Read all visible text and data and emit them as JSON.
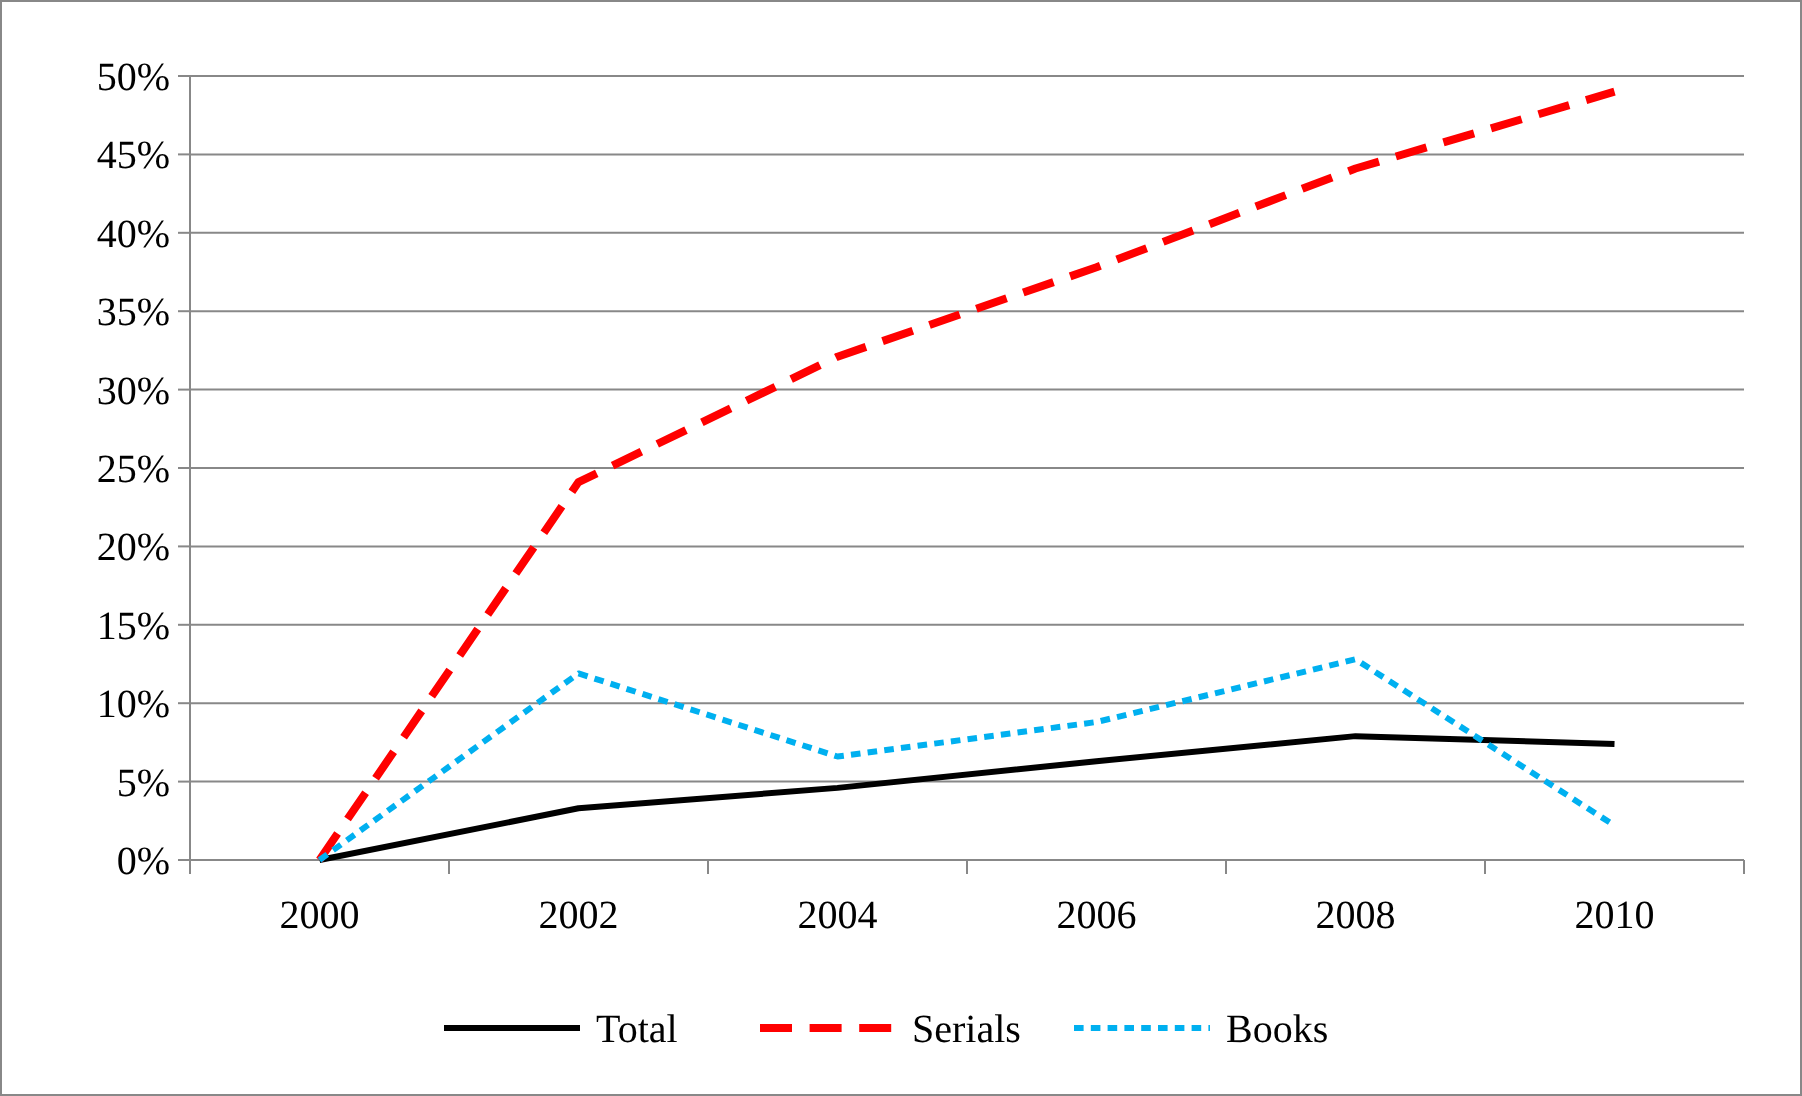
{
  "chart_data": {
    "type": "line",
    "categories": [
      "2000",
      "2002",
      "2004",
      "2006",
      "2008",
      "2010"
    ],
    "series": [
      {
        "name": "Total",
        "color": "#000000",
        "line_style": "solid",
        "values": [
          0,
          3.3,
          4.6,
          6.3,
          7.9,
          7.4
        ]
      },
      {
        "name": "Serials",
        "color": "#ff0000",
        "line_style": "dashed",
        "values": [
          0,
          24.1,
          32.1,
          37.8,
          44.1,
          49.0
        ]
      },
      {
        "name": "Books",
        "color": "#00b0f0",
        "line_style": "dotted",
        "values": [
          0,
          11.9,
          6.6,
          8.8,
          12.8,
          2.2
        ]
      }
    ],
    "ylim": [
      0,
      50
    ],
    "yticks": [
      {
        "value": 0,
        "label": "0%"
      },
      {
        "value": 5,
        "label": "5%"
      },
      {
        "value": 10,
        "label": "10%"
      },
      {
        "value": 15,
        "label": "15%"
      },
      {
        "value": 20,
        "label": "20%"
      },
      {
        "value": 25,
        "label": "25%"
      },
      {
        "value": 30,
        "label": "30%"
      },
      {
        "value": 35,
        "label": "35%"
      },
      {
        "value": 40,
        "label": "40%"
      },
      {
        "value": 45,
        "label": "45%"
      },
      {
        "value": 50,
        "label": "50%"
      }
    ],
    "grid": "y",
    "legend": "bottom",
    "marker": "none"
  }
}
